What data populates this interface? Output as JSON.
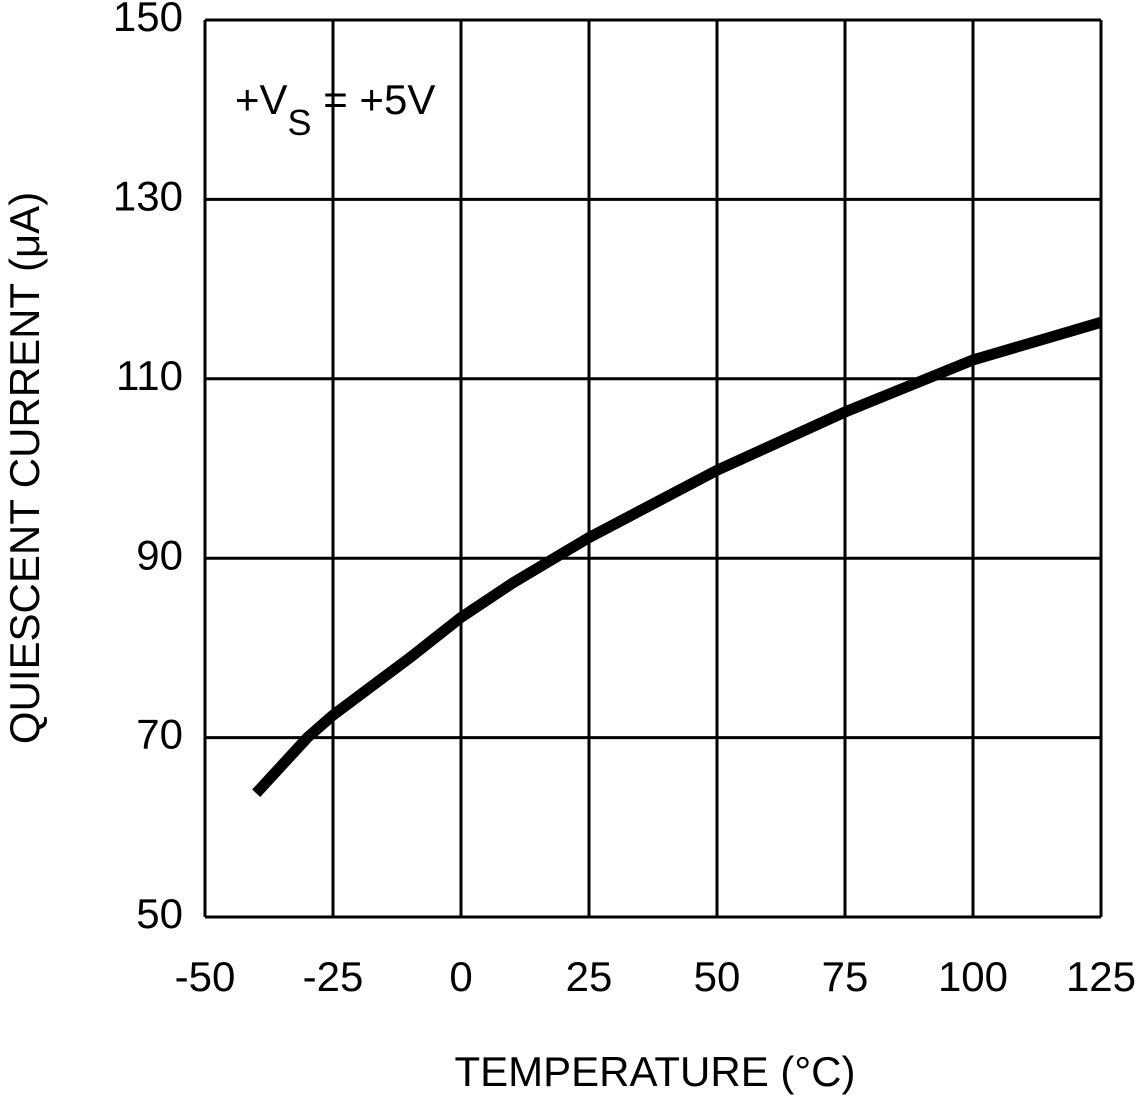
{
  "chart_data": {
    "type": "line",
    "x_label": "TEMPERATURE (°C)",
    "y_label": "QUIESCENT CURRENT (μA)",
    "annotation": {
      "main": "+V",
      "sub": "S",
      "rest": " = +5V"
    },
    "x": [
      -40,
      -30,
      -25,
      -10,
      0,
      10,
      25,
      50,
      75,
      100,
      125
    ],
    "series": [
      {
        "color": "#000000",
        "values": [
          63.8,
          70,
          72.5,
          78.9,
          83.4,
          87.2,
          92.3,
          99.8,
          106.3,
          112.1,
          116.3
        ]
      }
    ],
    "xlim": [
      -50,
      125
    ],
    "xticks": [
      -50,
      -25,
      0,
      25,
      50,
      75,
      100,
      125
    ],
    "ylim": [
      50,
      150
    ],
    "yticks": [
      50,
      70,
      90,
      110,
      130,
      150
    ],
    "grid": true
  }
}
